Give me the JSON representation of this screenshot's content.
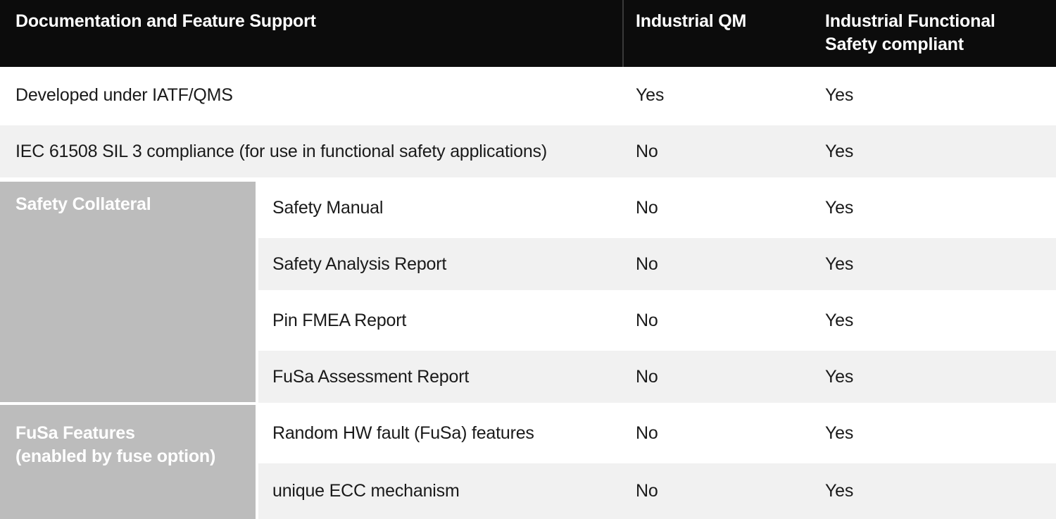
{
  "header": {
    "feature_col": "Documentation and Feature Support",
    "qm_col": "Industrial QM",
    "fusa_col": "Industrial Functional\nSafety compliant"
  },
  "full_rows": [
    {
      "label": "Developed under IATF/QMS",
      "industrial_qm": "Yes",
      "industrial_fusa": "Yes"
    },
    {
      "label": "IEC 61508 SIL 3 compliance (for use in functional safety applications)",
      "industrial_qm": "No",
      "industrial_fusa": "Yes"
    }
  ],
  "groups": [
    {
      "label": "Safety Collateral",
      "items": [
        {
          "label": "Safety Manual",
          "industrial_qm": "No",
          "industrial_fusa": "Yes"
        },
        {
          "label": "Safety Analysis Report",
          "industrial_qm": "No",
          "industrial_fusa": "Yes"
        },
        {
          "label": "Pin FMEA Report",
          "industrial_qm": "No",
          "industrial_fusa": "Yes"
        },
        {
          "label": "FuSa Assessment Report",
          "industrial_qm": "No",
          "industrial_fusa": "Yes"
        }
      ]
    },
    {
      "label": "FuSa Features\n(enabled by fuse option)",
      "items": [
        {
          "label": "Random HW fault (FuSa) features",
          "industrial_qm": "No",
          "industrial_fusa": "Yes"
        },
        {
          "label": "unique ECC mechanism",
          "industrial_qm": "No",
          "industrial_fusa": "Yes"
        }
      ]
    }
  ],
  "colors": {
    "header_bg": "#0c0c0c",
    "header_divider": "#3a3a3a",
    "group_cell_bg": "#bcbcbc",
    "stripe_bg": "#f1f1f1",
    "row_bg": "#ffffff",
    "text_dark": "#1a1a1a",
    "text_light": "#ffffff"
  }
}
